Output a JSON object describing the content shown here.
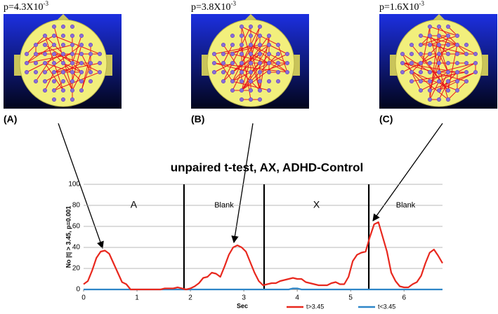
{
  "panels": [
    {
      "letter": "(A)",
      "p": "p=4.3X10",
      "exp": "-3"
    },
    {
      "letter": "(B)",
      "p": "p=3.8X10",
      "exp": "-3"
    },
    {
      "letter": "(C)",
      "p": "p=1.6X10",
      "exp": "-3"
    }
  ],
  "chart_data": {
    "type": "line",
    "title": "unpaired t-test, AX, ADHD-Control",
    "x_label": "Sec",
    "y_label": "No |t| > 3.45, p=0.001",
    "xlim": [
      0,
      6.72
    ],
    "xticks": [
      0,
      1,
      2,
      3,
      4,
      5,
      6
    ],
    "ylim": [
      0,
      100
    ],
    "yticks": [
      0,
      20,
      40,
      60,
      80,
      100
    ],
    "grid": true,
    "dividers": [
      1.88,
      3.38,
      5.34
    ],
    "sections": [
      "A",
      "Blank",
      "X",
      "Blank"
    ],
    "series": [
      {
        "name": "t>3.45",
        "color": "#e8281e",
        "x": [
          0,
          0.08,
          0.16,
          0.24,
          0.32,
          0.4,
          0.48,
          0.56,
          0.64,
          0.72,
          0.8,
          0.88,
          0.96,
          1.04,
          1.12,
          1.2,
          1.28,
          1.36,
          1.44,
          1.52,
          1.6,
          1.68,
          1.76,
          1.84,
          1.92,
          2,
          2.08,
          2.16,
          2.24,
          2.32,
          2.4,
          2.48,
          2.56,
          2.64,
          2.72,
          2.8,
          2.88,
          2.96,
          3.04,
          3.12,
          3.2,
          3.28,
          3.36,
          3.44,
          3.52,
          3.6,
          3.68,
          3.76,
          3.84,
          3.92,
          4,
          4.08,
          4.16,
          4.24,
          4.32,
          4.4,
          4.48,
          4.56,
          4.64,
          4.72,
          4.8,
          4.88,
          4.96,
          5.04,
          5.12,
          5.2,
          5.28,
          5.36,
          5.44,
          5.52,
          5.6,
          5.68,
          5.76,
          5.84,
          5.92,
          6,
          6.08,
          6.16,
          6.24,
          6.32,
          6.4,
          6.48,
          6.56,
          6.64,
          6.72
        ],
        "values": [
          5,
          8,
          18,
          30,
          36,
          37,
          34,
          25,
          16,
          7,
          5,
          0,
          0,
          0,
          0,
          0,
          0,
          0,
          0,
          1,
          1,
          1,
          2,
          1,
          0,
          1,
          3,
          6,
          11,
          12,
          16,
          15,
          12,
          22,
          33,
          40,
          42,
          40,
          36,
          26,
          16,
          8,
          4,
          5,
          6,
          6,
          8,
          9,
          10,
          11,
          10,
          10,
          7,
          6,
          5,
          4,
          4,
          4,
          6,
          7,
          5,
          5,
          12,
          27,
          33,
          35,
          36,
          50,
          62,
          64,
          50,
          36,
          16,
          8,
          3,
          2,
          2,
          5,
          7,
          13,
          25,
          35,
          38,
          32,
          25
        ]
      },
      {
        "name": "t<3.45",
        "color": "#2e86c8",
        "x": [
          0,
          3.84,
          3.92,
          4,
          4.08,
          6.72
        ],
        "values": [
          0,
          0,
          1,
          1,
          0,
          0
        ]
      }
    ]
  }
}
